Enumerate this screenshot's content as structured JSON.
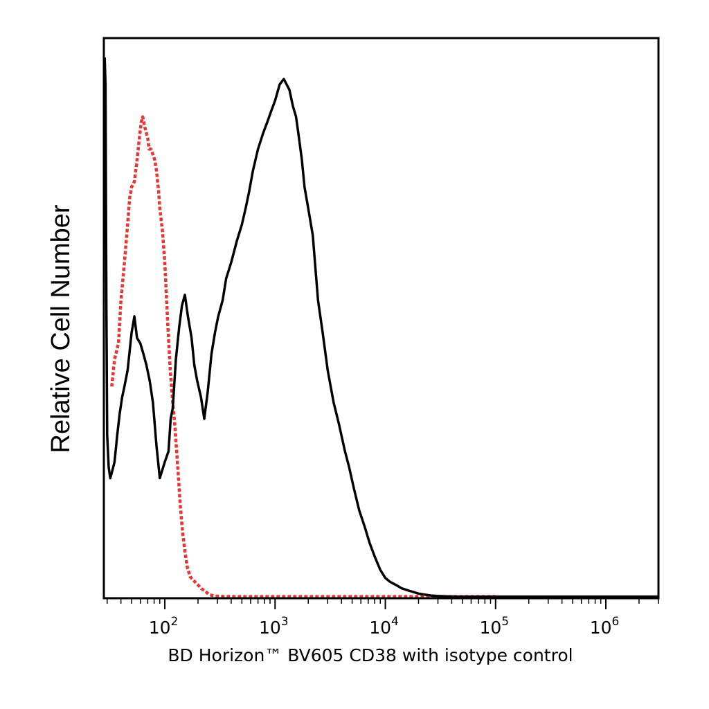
{
  "chart_data": {
    "type": "line",
    "xlabel": "BD Horizon™ BV605 CD38 with isotype control",
    "ylabel": "Relative Cell Number",
    "x_scale": "log",
    "xlim": [
      28,
      3000000
    ],
    "ylim": [
      0,
      100
    ],
    "x_tick_labels": [
      {
        "value": 100,
        "base": "10",
        "exp": "2"
      },
      {
        "value": 1000,
        "base": "10",
        "exp": "3"
      },
      {
        "value": 10000,
        "base": "10",
        "exp": "4"
      },
      {
        "value": 100000,
        "base": "10",
        "exp": "5"
      },
      {
        "value": 1000000,
        "base": "10",
        "exp": "6"
      }
    ],
    "grid": false,
    "series": [
      {
        "color": "#e53935",
        "style": "dashed",
        "x": [
          33,
          35,
          38,
          40,
          43,
          46,
          48,
          50,
          53,
          56,
          58,
          61,
          63,
          66,
          68,
          70,
          72,
          75,
          78,
          81,
          84,
          88,
          90,
          95,
          100,
          106,
          112,
          118,
          123,
          128,
          133,
          138,
          145,
          152,
          160,
          170,
          185,
          200,
          215,
          230,
          250,
          265,
          285,
          310,
          340,
          380,
          500,
          1000,
          10000,
          100000
        ],
        "y": [
          39,
          44,
          47,
          55,
          62,
          69,
          74,
          76,
          77,
          81,
          84,
          88,
          89,
          87,
          86,
          85,
          83,
          83,
          82,
          81,
          79,
          75,
          72,
          68,
          62,
          51,
          42,
          36,
          32,
          27,
          22,
          17,
          12,
          8.5,
          5.5,
          3.7,
          2.9,
          2.2,
          1.5,
          1.1,
          0.5,
          0.3,
          0.15,
          0.1,
          0.08,
          0.06,
          0.05,
          0.05,
          0.05,
          0.05
        ]
      },
      {
        "color": "#000000",
        "style": "solid",
        "x": [
          28.5,
          29,
          29.5,
          30,
          31,
          32,
          33,
          35,
          37,
          39,
          41,
          43,
          46,
          50,
          53,
          56,
          60,
          64,
          68,
          73,
          78,
          84,
          90,
          100,
          108,
          113,
          118,
          126,
          135,
          143,
          152,
          162,
          175,
          185,
          197,
          213,
          228,
          245,
          265,
          285,
          305,
          335,
          360,
          400,
          450,
          500,
          540,
          580,
          630,
          700,
          780,
          850,
          920,
          1000,
          1100,
          1200,
          1350,
          1450,
          1550,
          1650,
          1750,
          1850,
          2000,
          2200,
          2300,
          2450,
          2700,
          3000,
          3400,
          3800,
          4300,
          4700,
          5200,
          5800,
          6500,
          7200,
          8000,
          9000,
          10000,
          11000,
          12500,
          14000,
          16000,
          18000,
          20000,
          23000,
          26000,
          30000,
          35000,
          40000,
          45000,
          50000,
          60000,
          70000,
          80000,
          100000,
          200000,
          1000000,
          3000000
        ],
        "y": [
          100,
          95,
          55,
          30,
          24,
          22,
          23,
          25,
          30,
          34,
          37,
          39,
          42,
          49,
          52,
          48,
          47,
          45,
          43,
          40,
          36,
          28,
          22,
          25,
          27,
          33,
          35,
          44,
          50,
          54,
          56,
          52,
          48,
          43,
          40,
          37,
          33,
          38,
          45,
          49,
          52,
          55,
          59,
          62,
          66,
          69,
          72,
          75,
          79,
          83,
          86,
          88,
          90,
          92,
          95,
          96,
          94,
          91,
          89,
          85,
          81,
          76,
          72,
          67,
          62,
          55,
          49,
          42,
          36,
          32,
          27,
          24,
          20,
          16,
          13,
          10,
          7.5,
          5,
          3.5,
          2.8,
          2.2,
          1.6,
          1.2,
          0.9,
          0.6,
          0.4,
          0.25,
          0.15,
          0.1,
          0.06,
          0.04,
          0.03,
          0.02,
          0.02,
          0.02,
          0.02,
          0.02,
          0.02,
          0.02
        ]
      }
    ]
  }
}
